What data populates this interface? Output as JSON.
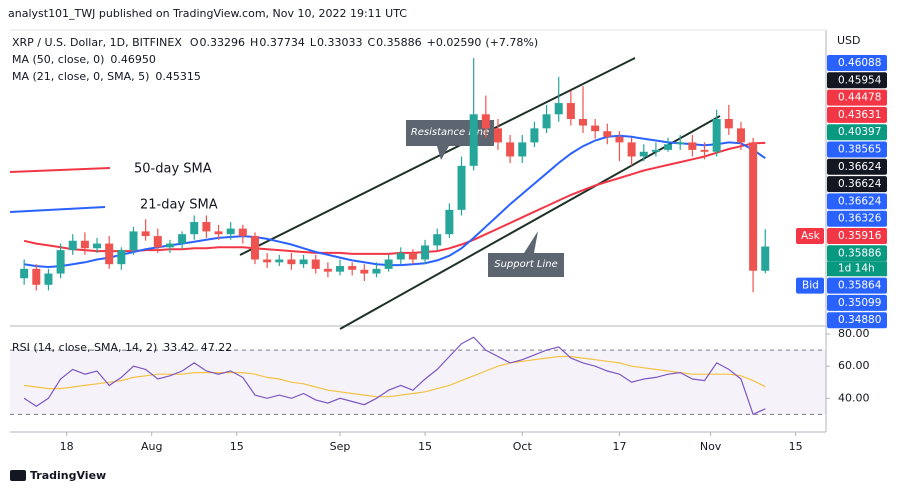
{
  "chart_data": {
    "type": "candlestick",
    "header": "analyst101_TWJ published on TradingView.com, Nov 10, 2022 19:11 UTC",
    "symbol": "XRP / U.S. Dollar, 1D, BITFINEX",
    "ohlc_keys": [
      "O",
      "H",
      "L",
      "C"
    ],
    "change": {
      "value": 0.0259,
      "label": "+0.02590"
    },
    "change_pct": {
      "value": 7.78,
      "label": "(+7.78%)"
    },
    "currency": "USD",
    "footer": "TradingView",
    "annotations": {
      "sma50": "50-day SMA",
      "sma21": "21-day SMA",
      "resistance": "Resistance Line",
      "support": "Support Line"
    },
    "up_color": "#26a69a",
    "down_color": "#ef5350",
    "candles": {
      "x": [
        "2022-07-11",
        "2022-07-13",
        "2022-07-15",
        "2022-07-17",
        "2022-07-19",
        "2022-07-21",
        "2022-07-23",
        "2022-07-25",
        "2022-07-27",
        "2022-07-29",
        "2022-07-31",
        "2022-08-02",
        "2022-08-04",
        "2022-08-06",
        "2022-08-08",
        "2022-08-10",
        "2022-08-12",
        "2022-08-14",
        "2022-08-16",
        "2022-08-18",
        "2022-08-20",
        "2022-08-22",
        "2022-08-24",
        "2022-08-26",
        "2022-08-28",
        "2022-08-30",
        "2022-09-01",
        "2022-09-03",
        "2022-09-05",
        "2022-09-07",
        "2022-09-09",
        "2022-09-11",
        "2022-09-13",
        "2022-09-15",
        "2022-09-17",
        "2022-09-19",
        "2022-09-21",
        "2022-09-23",
        "2022-09-25",
        "2022-09-27",
        "2022-09-29",
        "2022-10-01",
        "2022-10-03",
        "2022-10-05",
        "2022-10-07",
        "2022-10-09",
        "2022-10-11",
        "2022-10-13",
        "2022-10-15",
        "2022-10-17",
        "2022-10-19",
        "2022-10-21",
        "2022-10-23",
        "2022-10-25",
        "2022-10-27",
        "2022-10-29",
        "2022-10-31",
        "2022-11-02",
        "2022-11-04",
        "2022-11-06",
        "2022-11-08",
        "2022-11-10"
      ],
      "open": [
        0.325,
        0.335,
        0.318,
        0.33,
        0.355,
        0.365,
        0.357,
        0.362,
        0.34,
        0.355,
        0.375,
        0.37,
        0.358,
        0.362,
        0.372,
        0.385,
        0.375,
        0.372,
        0.378,
        0.37,
        0.345,
        0.342,
        0.345,
        0.34,
        0.345,
        0.335,
        0.332,
        0.338,
        0.334,
        0.33,
        0.335,
        0.345,
        0.352,
        0.345,
        0.36,
        0.372,
        0.398,
        0.445,
        0.5,
        0.485,
        0.47,
        0.455,
        0.47,
        0.485,
        0.5,
        0.512,
        0.495,
        0.488,
        0.482,
        0.476,
        0.47,
        0.455,
        0.46,
        0.462,
        0.468,
        0.47,
        0.462,
        0.46,
        0.495,
        0.485,
        0.47,
        0.33296
      ],
      "high": [
        0.345,
        0.34,
        0.335,
        0.362,
        0.372,
        0.374,
        0.368,
        0.37,
        0.358,
        0.38,
        0.388,
        0.378,
        0.366,
        0.375,
        0.392,
        0.392,
        0.382,
        0.385,
        0.382,
        0.374,
        0.352,
        0.35,
        0.352,
        0.35,
        0.35,
        0.342,
        0.345,
        0.342,
        0.34,
        0.342,
        0.35,
        0.358,
        0.356,
        0.366,
        0.378,
        0.405,
        0.455,
        0.56,
        0.52,
        0.495,
        0.478,
        0.478,
        0.492,
        0.51,
        0.54,
        0.525,
        0.53,
        0.495,
        0.49,
        0.482,
        0.475,
        0.468,
        0.47,
        0.475,
        0.478,
        0.478,
        0.47,
        0.505,
        0.51,
        0.492,
        0.475,
        0.37734
      ],
      "low": [
        0.318,
        0.312,
        0.312,
        0.325,
        0.35,
        0.35,
        0.352,
        0.335,
        0.334,
        0.35,
        0.365,
        0.352,
        0.352,
        0.356,
        0.366,
        0.368,
        0.366,
        0.366,
        0.362,
        0.34,
        0.336,
        0.338,
        0.334,
        0.336,
        0.33,
        0.326,
        0.328,
        0.328,
        0.322,
        0.326,
        0.332,
        0.34,
        0.34,
        0.34,
        0.355,
        0.368,
        0.392,
        0.44,
        0.475,
        0.462,
        0.448,
        0.448,
        0.465,
        0.48,
        0.492,
        0.488,
        0.48,
        0.474,
        0.468,
        0.45,
        0.445,
        0.45,
        0.455,
        0.46,
        0.462,
        0.455,
        0.452,
        0.455,
        0.478,
        0.462,
        0.31,
        0.33033
      ],
      "close": [
        0.335,
        0.318,
        0.33,
        0.355,
        0.365,
        0.357,
        0.362,
        0.34,
        0.355,
        0.375,
        0.37,
        0.358,
        0.362,
        0.372,
        0.385,
        0.375,
        0.372,
        0.378,
        0.37,
        0.345,
        0.342,
        0.345,
        0.34,
        0.345,
        0.335,
        0.332,
        0.338,
        0.334,
        0.33,
        0.335,
        0.345,
        0.352,
        0.345,
        0.36,
        0.372,
        0.398,
        0.445,
        0.5,
        0.485,
        0.47,
        0.455,
        0.47,
        0.485,
        0.5,
        0.512,
        0.495,
        0.488,
        0.482,
        0.476,
        0.47,
        0.455,
        0.46,
        0.462,
        0.468,
        0.47,
        0.462,
        0.46,
        0.495,
        0.485,
        0.47,
        0.333,
        0.35886
      ]
    },
    "series": [
      {
        "name": "MA (50, close, 0)",
        "color": "#f23645",
        "legend_value": {
          "value": 0.4695,
          "label": "0.46950"
        },
        "values": [
          0.365,
          0.362,
          0.36,
          0.358,
          0.356,
          0.355,
          0.354,
          0.354,
          0.354,
          0.354,
          0.355,
          0.355,
          0.356,
          0.356,
          0.357,
          0.357,
          0.358,
          0.358,
          0.358,
          0.357,
          0.356,
          0.355,
          0.354,
          0.353,
          0.352,
          0.352,
          0.352,
          0.351,
          0.351,
          0.351,
          0.351,
          0.352,
          0.352,
          0.353,
          0.354,
          0.357,
          0.361,
          0.366,
          0.372,
          0.378,
          0.384,
          0.39,
          0.396,
          0.402,
          0.408,
          0.414,
          0.419,
          0.424,
          0.428,
          0.432,
          0.436,
          0.44,
          0.443,
          0.446,
          0.449,
          0.452,
          0.455,
          0.459,
          0.463,
          0.466,
          0.469,
          0.4695
        ]
      },
      {
        "name": "MA (21, close, 0, SMA, 5)",
        "color": "#2962ff",
        "values": [
          0.34,
          0.338,
          0.337,
          0.338,
          0.34,
          0.342,
          0.345,
          0.347,
          0.35,
          0.353,
          0.356,
          0.358,
          0.36,
          0.362,
          0.364,
          0.366,
          0.368,
          0.369,
          0.37,
          0.369,
          0.367,
          0.364,
          0.361,
          0.357,
          0.353,
          0.35,
          0.347,
          0.344,
          0.342,
          0.34,
          0.339,
          0.339,
          0.34,
          0.341,
          0.344,
          0.349,
          0.357,
          0.368,
          0.38,
          0.392,
          0.404,
          0.415,
          0.426,
          0.437,
          0.448,
          0.458,
          0.466,
          0.472,
          0.476,
          0.477,
          0.476,
          0.474,
          0.472,
          0.47,
          0.469,
          0.468,
          0.467,
          0.468,
          0.47,
          0.469,
          0.462,
          0.45315
        ]
      }
    ],
    "xlim": [
      "2022-07-09",
      "2022-11-20"
    ],
    "xticks": [
      {
        "value": "2022-07-18",
        "label": "18"
      },
      {
        "value": "2022-08-01",
        "label": "Aug"
      },
      {
        "value": "2022-08-15",
        "label": "15"
      },
      {
        "value": "2022-09-01",
        "label": "Sep"
      },
      {
        "value": "2022-09-15",
        "label": "15"
      },
      {
        "value": "2022-10-01",
        "label": "Oct"
      },
      {
        "value": "2022-10-17",
        "label": "17"
      },
      {
        "value": "2022-11-01",
        "label": "Nov"
      },
      {
        "value": "2022-11-15",
        "label": "15"
      }
    ],
    "ylim": [
      0.274,
      0.59
    ],
    "price_tags": [
      {
        "value": 0.46088,
        "color": "#2962ff"
      },
      {
        "value": 0.45954,
        "color": "#131722"
      },
      {
        "value": 0.44478,
        "color": "#f23645"
      },
      {
        "value": 0.43631,
        "color": "#f23645"
      },
      {
        "value": 0.40397,
        "color": "#089981"
      },
      {
        "value": 0.38565,
        "color": "#2962ff"
      },
      {
        "value": 0.36624,
        "color": "#131722"
      },
      {
        "value": 0.36624,
        "color": "#131722"
      },
      {
        "value": 0.36624,
        "color": "#2962ff"
      },
      {
        "value": 0.36326,
        "color": "#2962ff"
      },
      {
        "value": 0.35916,
        "color": "#f23645"
      },
      {
        "value": 0.35886,
        "color": "#089981"
      },
      {
        "value": 0.35864,
        "color": "#2962ff"
      },
      {
        "value": 0.35099,
        "color": "#2962ff"
      },
      {
        "value": 0.3488,
        "label": "0.34880",
        "color": "#2962ff"
      }
    ],
    "countdown": "1d 14h",
    "ask": "Ask",
    "bid": "Bid",
    "rsi": {
      "name": "RSI (14, close, SMA, 14, 2)",
      "color": "#7e57c2",
      "ma_color": "#f5c242",
      "values": [
        40,
        35,
        40,
        52,
        58,
        55,
        57,
        48,
        53,
        60,
        58,
        52,
        54,
        57,
        62,
        57,
        55,
        57,
        53,
        42,
        40,
        42,
        40,
        43,
        39,
        37,
        40,
        38,
        36,
        40,
        45,
        48,
        45,
        52,
        58,
        66,
        74,
        78,
        70,
        66,
        62,
        64,
        67,
        70,
        72,
        65,
        62,
        60,
        57,
        55,
        50,
        52,
        53,
        55,
        56,
        52,
        51,
        62,
        58,
        52,
        30,
        33.42
      ],
      "ma_values": [
        48,
        47,
        46,
        46,
        47,
        48,
        49,
        50,
        51,
        53,
        54,
        55,
        55,
        55,
        56,
        56,
        56,
        56,
        56,
        55,
        53,
        52,
        50,
        49,
        47,
        45,
        44,
        43,
        42,
        41,
        41,
        42,
        43,
        44,
        46,
        48,
        51,
        54,
        57,
        60,
        62,
        63,
        64,
        65,
        66,
        66,
        65,
        64,
        63,
        62,
        60,
        59,
        58,
        57,
        56,
        55,
        55,
        55,
        55,
        54,
        51,
        47.22
      ],
      "band": [
        30,
        70
      ],
      "ylim": [
        19,
        85
      ],
      "yticks": [
        {
          "value": 80,
          "label": "80.00"
        },
        {
          "value": 60,
          "label": "60.00"
        },
        {
          "value": 40,
          "label": "40.00"
        }
      ]
    }
  }
}
